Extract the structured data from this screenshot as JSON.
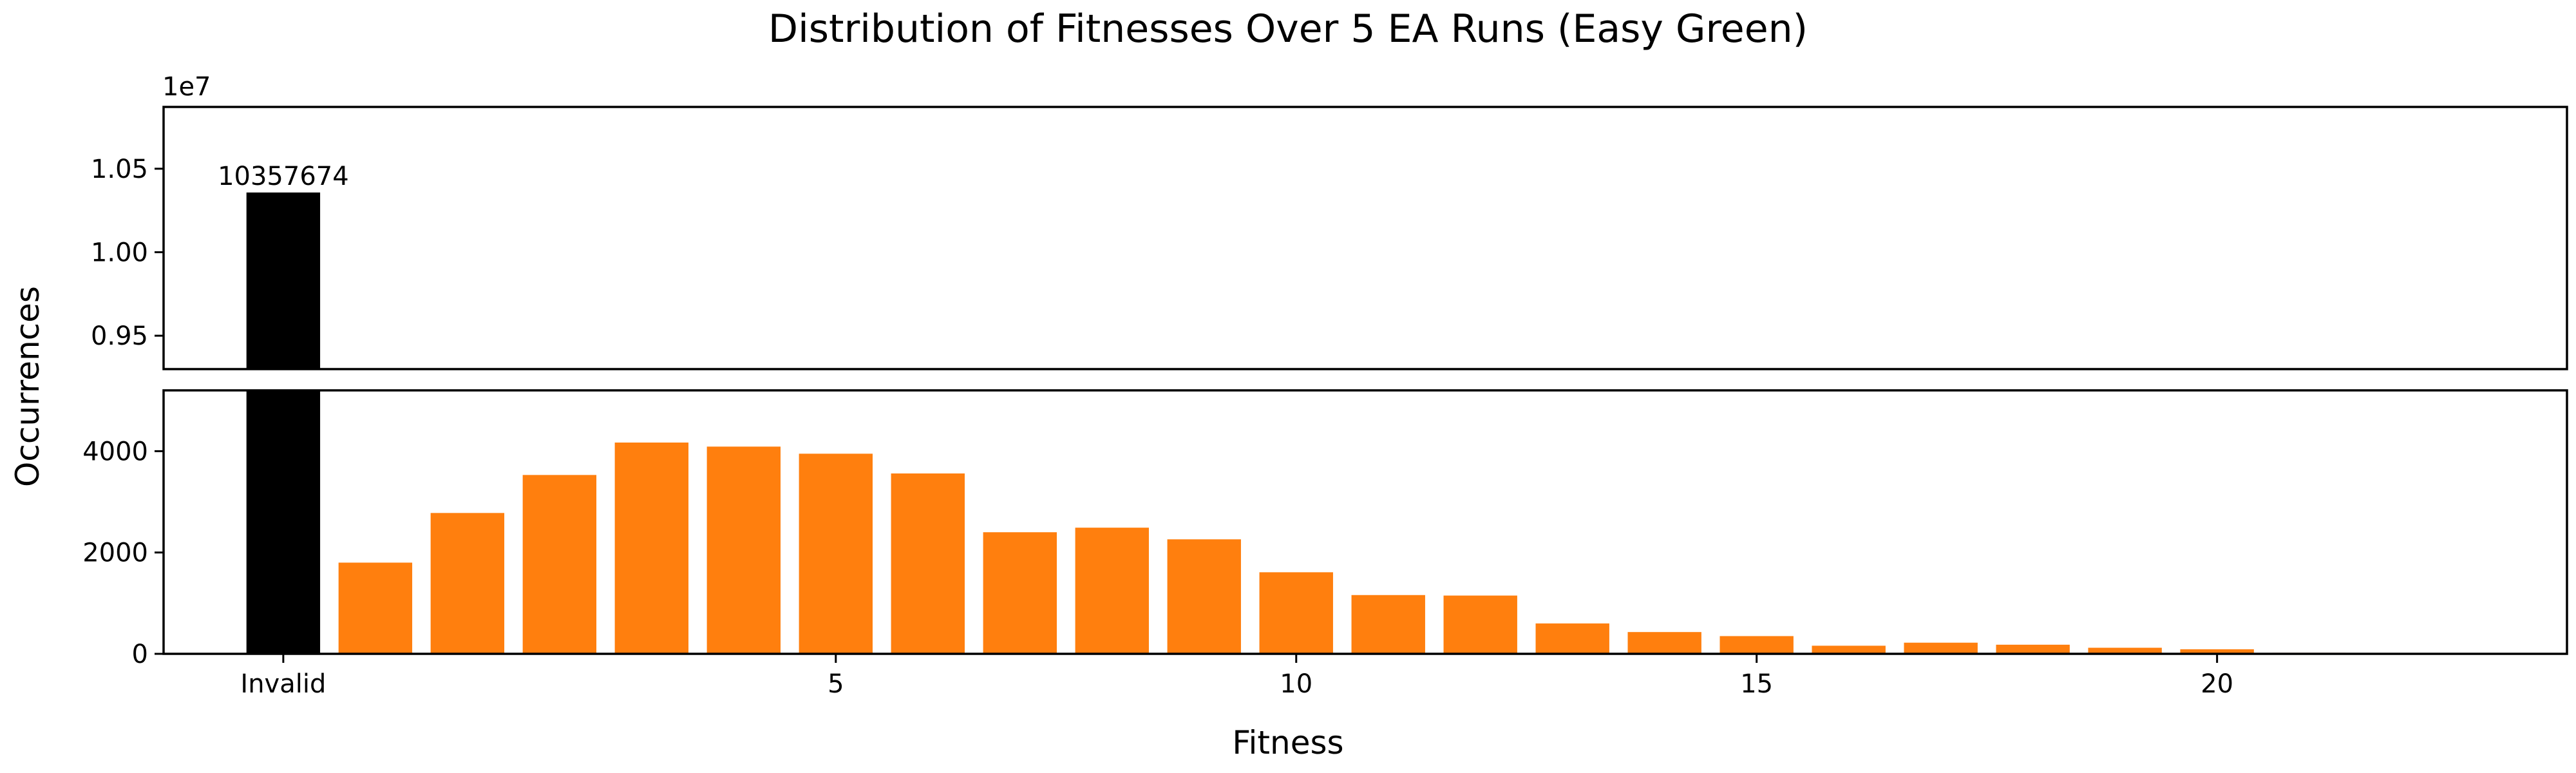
{
  "chart_data": {
    "type": "bar",
    "title": "Distribution of Fitnesses Over 5 EA Runs (Easy Green)",
    "xlabel": "Fitness",
    "ylabel": "Occurrences",
    "broken_y_axis": true,
    "upper_axis": {
      "ylim": [
        9300000,
        10870000
      ],
      "yticks": [
        0.95,
        1.0,
        1.05
      ],
      "offset_label": "1e7"
    },
    "lower_axis": {
      "ylim": [
        0,
        5200
      ],
      "yticks": [
        0,
        2000,
        4000
      ]
    },
    "xlim": [
      -1.3,
      24.8
    ],
    "xticks": [
      {
        "pos": 0,
        "label": "Invalid"
      },
      {
        "pos": 6,
        "label": "5"
      },
      {
        "pos": 11,
        "label": "10"
      },
      {
        "pos": 16,
        "label": "15"
      },
      {
        "pos": 21,
        "label": "20"
      }
    ],
    "categories": [
      "Invalid",
      "1",
      "2",
      "3",
      "4",
      "5",
      "6",
      "7",
      "8",
      "9",
      "10",
      "11",
      "12",
      "13",
      "14",
      "15",
      "16",
      "17",
      "18",
      "19",
      "20",
      "21",
      "22",
      "23"
    ],
    "values": [
      10357674,
      1800,
      2780,
      3530,
      4170,
      4090,
      3950,
      3560,
      2400,
      2490,
      2260,
      1610,
      1160,
      1150,
      600,
      430,
      350,
      160,
      220,
      180,
      120,
      90,
      20,
      10
    ],
    "colors": {
      "invalid": "#000000",
      "valid": "#ff7f0e"
    },
    "data_labels": [
      {
        "index": 0,
        "text": "10357674"
      }
    ]
  }
}
